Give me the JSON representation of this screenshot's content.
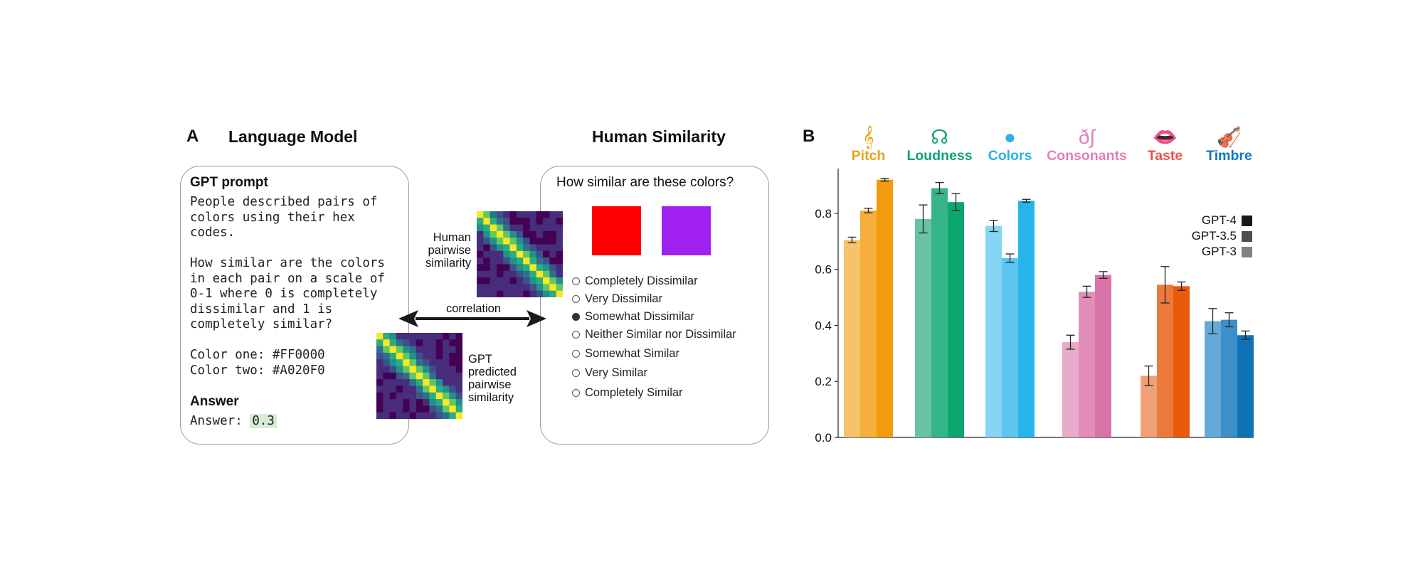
{
  "panelA": {
    "letter": "A",
    "left_heading": "Language Model",
    "right_heading": "Human Similarity",
    "prompt_box": {
      "title": "GPT prompt",
      "text": "People described pairs of\ncolors using their hex\ncodes.\n\nHow similar are the colors\nin each pair on a scale of\n0-1 where 0 is completely\ndissimilar and 1 is\ncompletely similar?\n\nColor one: #FF0000\nColor two: #A020F0",
      "answer_title": "Answer",
      "answer_label": "Answer:",
      "answer_value": "0.3"
    },
    "human_matrix_label": "Human\npairwise\nsimilarity",
    "gpt_matrix_label": "GPT\npredicted\npairwise\nsimilarity",
    "correlation_label": "correlation",
    "survey": {
      "question": "How similar are these colors?",
      "color_one": "#FF0000",
      "color_two": "#A020F0",
      "options": [
        "Completely Dissimilar",
        "Very Dissimilar",
        "Somewhat Dissimilar",
        "Neither Similar nor Dissimilar",
        "Somewhat Similar",
        "Very Similar",
        "Completely Similar"
      ],
      "selected_index": 2
    }
  },
  "panelB": {
    "letter": "B"
  },
  "chart_data": {
    "type": "bar",
    "categories": [
      "Pitch",
      "Loudness",
      "Colors",
      "Consonants",
      "Taste",
      "Timbre"
    ],
    "category_icons": [
      "treble-clef-icon",
      "ear-icon",
      "color-circles-icon",
      "phonetic-symbols-icon",
      "lips-icon",
      "violin-icon"
    ],
    "category_glyphs": [
      "𝄞",
      "☊",
      "●",
      "ð∫",
      "👄",
      "🎻"
    ],
    "category_colors": [
      "#E8A31C",
      "#12A07A",
      "#2BB2E6",
      "#E080B4",
      "#E5534B",
      "#1276BF"
    ],
    "series": [
      {
        "name": "GPT-3",
        "values": [
          0.705,
          0.78,
          0.755,
          0.34,
          0.22,
          0.415
        ],
        "errors": [
          0.01,
          0.05,
          0.02,
          0.025,
          0.035,
          0.045
        ]
      },
      {
        "name": "GPT-3.5",
        "values": [
          0.81,
          0.89,
          0.64,
          0.52,
          0.545,
          0.42
        ],
        "errors": [
          0.008,
          0.02,
          0.015,
          0.02,
          0.065,
          0.025
        ]
      },
      {
        "name": "GPT-4",
        "values": [
          0.92,
          0.84,
          0.845,
          0.58,
          0.54,
          0.365
        ],
        "errors": [
          0.005,
          0.03,
          0.005,
          0.012,
          0.015,
          0.015
        ]
      }
    ],
    "bar_colors": [
      [
        "#F6C36A",
        "#F4AE3C",
        "#F29B0E"
      ],
      [
        "#66C4A4",
        "#36B58A",
        "#0EA66F"
      ],
      [
        "#85D5F4",
        "#5BC6EF",
        "#26B4EA"
      ],
      [
        "#E8AAC9",
        "#E08DB8",
        "#D873A8"
      ],
      [
        "#F0A077",
        "#EC7A3C",
        "#E85A0A"
      ],
      [
        "#66A9D6",
        "#3D8FC9",
        "#1072B6"
      ]
    ],
    "legend": [
      {
        "label": "GPT-4",
        "color": "#1a1a1a"
      },
      {
        "label": "GPT-3.5",
        "color": "#4d4d4d"
      },
      {
        "label": "GPT-3",
        "color": "#808080"
      }
    ],
    "legend_position": "top-right",
    "yticks": [
      "0.0",
      "0.2",
      "0.4",
      "0.6",
      "0.8"
    ],
    "ylim": [
      0,
      0.97
    ],
    "xlabel": "",
    "ylabel": ""
  }
}
